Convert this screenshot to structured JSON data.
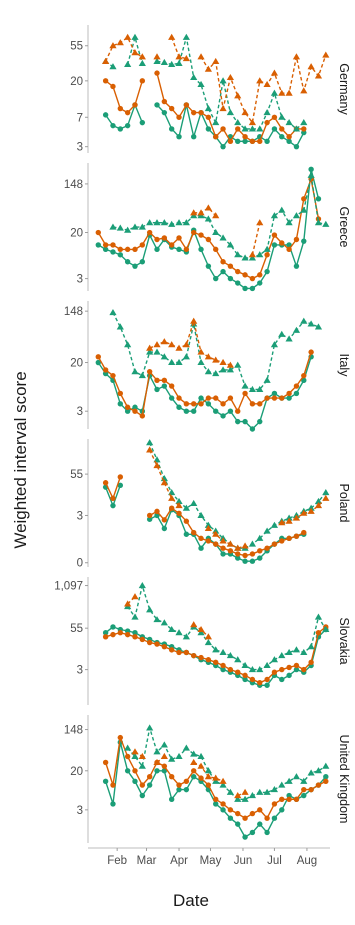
{
  "chart_data": {
    "type": "line",
    "xlabel": "Date",
    "ylabel": "Weighted interval score",
    "x_ticks": [
      "Feb",
      "Mar",
      "Apr",
      "May",
      "Jun",
      "Jul",
      "Aug"
    ],
    "x_dates": [
      "01-14",
      "01-21",
      "01-28",
      "02-04",
      "02-11",
      "02-18",
      "02-25",
      "03-04",
      "03-11",
      "03-18",
      "03-25",
      "04-01",
      "04-08",
      "04-15",
      "04-22",
      "04-29",
      "05-06",
      "05-13",
      "05-20",
      "05-27",
      "06-03",
      "06-10",
      "06-17",
      "06-24",
      "07-01",
      "07-08",
      "07-15",
      "07-22",
      "07-29",
      "08-05",
      "08-12",
      "08-19"
    ],
    "series_colors": [
      "#1b9e77",
      "#d95f02"
    ],
    "series_styles": [
      "solid",
      "dashed"
    ],
    "panels": [
      {
        "label": "Germany",
        "y_ticks": [
          "55",
          "20",
          "7",
          "3"
        ],
        "y_tick_values": [
          55,
          20,
          7,
          3
        ],
        "ylim": [
          2.5,
          100
        ],
        "series": [
          {
            "values": [
              null,
              7.5,
              5.5,
              5,
              5.5,
              10,
              6,
              null,
              10,
              8,
              5,
              4,
              10,
              4,
              8,
              5,
              4,
              3,
              4,
              3.5,
              3.5,
              3.5,
              4,
              3.5,
              5,
              4,
              3.5,
              3,
              4.5,
              null,
              null,
              null
            ]
          },
          {
            "values": [
              null,
              20,
              17,
              9,
              8,
              10,
              20,
              null,
              25,
              11,
              9,
              7,
              10,
              8,
              8,
              7,
              4,
              5,
              3.5,
              5,
              4,
              3.5,
              3.5,
              6,
              7,
              5,
              4,
              5,
              5,
              null,
              null,
              null
            ]
          },
          {
            "values": [
              null,
              35,
              30,
              null,
              32,
              70,
              33,
              null,
              35,
              34,
              32,
              33,
              70,
              22,
              18,
              9,
              6,
              20,
              8,
              6,
              5,
              5,
              5,
              8,
              14,
              7,
              6,
              5,
              6,
              null,
              null,
              null
            ]
          },
          {
            "values": [
              null,
              35,
              55,
              60,
              70,
              45,
              40,
              null,
              40,
              null,
              70,
              40,
              38,
              null,
              40,
              28,
              35,
              9,
              22,
              13,
              8,
              6,
              20,
              18,
              25,
              14,
              14,
              40,
              15,
              30,
              23,
              42
            ]
          }
        ]
      },
      {
        "label": "Greece",
        "y_ticks": [
          "148",
          "20",
          "3"
        ],
        "y_tick_values": [
          148,
          20,
          3
        ],
        "ylim": [
          1.8,
          350
        ],
        "series": [
          {
            "values": [
              12,
              10,
              9,
              8,
              6,
              5,
              6,
              18,
              10,
              15,
              11,
              10,
              9,
              22,
              10,
              5,
              3,
              4,
              3,
              2.5,
              2,
              2,
              2.5,
              4,
              12,
              12,
              12,
              5,
              14,
              270,
              80,
              null
            ]
          },
          {
            "values": [
              20,
              12,
              12,
              10,
              10,
              10,
              12,
              20,
              15,
              16,
              12,
              16,
              10,
              20,
              18,
              15,
              10,
              6,
              5,
              4,
              3.5,
              3,
              3.5,
              8,
              18,
              13,
              10,
              15,
              80,
              180,
              35,
              null
            ]
          },
          {
            "values": [
              null,
              null,
              25,
              24,
              22,
              25,
              25,
              30,
              30,
              30,
              28,
              30,
              30,
              40,
              40,
              35,
              20,
              16,
              12,
              8,
              7,
              7,
              8,
              10,
              40,
              50,
              30,
              40,
              50,
              210,
              30,
              28
            ]
          },
          {
            "values": [
              null,
              null,
              null,
              null,
              null,
              null,
              null,
              null,
              null,
              null,
              null,
              null,
              null,
              45,
              45,
              55,
              40,
              null,
              null,
              null,
              null,
              8,
              30,
              null,
              null,
              null,
              null,
              null,
              null,
              null,
              null,
              null
            ]
          }
        ]
      },
      {
        "label": "Italy",
        "y_ticks": [
          "148",
          "20",
          "3"
        ],
        "y_tick_values": [
          148,
          20,
          3
        ],
        "ylim": [
          1.5,
          220
        ],
        "series": [
          {
            "values": [
              20,
              13,
              10,
              4,
              3,
              3.5,
              3,
              12,
              7,
              8,
              5,
              3.5,
              3,
              3,
              5,
              4,
              3,
              2.5,
              3,
              2,
              2,
              1.5,
              2,
              5,
              6,
              5,
              5,
              6,
              10,
              25,
              null,
              null
            ]
          },
          {
            "values": [
              25,
              15,
              12,
              6,
              3.5,
              3,
              2.5,
              14,
              10,
              10,
              8,
              5,
              4,
              4,
              4,
              5,
              5,
              4,
              5,
              3,
              6,
              4,
              4,
              5,
              5,
              5,
              6,
              8,
              12,
              30,
              null,
              null
            ]
          },
          {
            "values": [
              null,
              null,
              140,
              80,
              40,
              14,
              12,
              30,
              30,
              25,
              20,
              20,
              25,
              90,
              20,
              14,
              13,
              15,
              15,
              18,
              8,
              7,
              7,
              10,
              40,
              60,
              50,
              70,
              100,
              90,
              80,
              null
            ]
          },
          {
            "values": [
              null,
              null,
              null,
              null,
              null,
              null,
              null,
              35,
              40,
              45,
              40,
              35,
              40,
              100,
              30,
              25,
              22,
              20,
              18,
              null,
              null,
              null,
              null,
              null,
              null,
              null,
              null,
              null,
              null,
              null,
              null,
              null
            ]
          }
        ]
      },
      {
        "label": "Poland",
        "y_ticks": [
          "55",
          "3",
          "0"
        ],
        "y_tick_values": [
          55,
          3,
          0
        ],
        "ylim": [
          0.08,
          650
        ],
        "series": [
          {
            "values": [
              null,
              22,
              6,
              25,
              null,
              null,
              null,
              2.3,
              3,
              1.2,
              4.5,
              3,
              0.8,
              0.8,
              0.3,
              0.6,
              0.4,
              0.2,
              0.2,
              0.15,
              0.12,
              0.12,
              0.15,
              0.25,
              0.4,
              0.6,
              0.6,
              0.7,
              0.8,
              null,
              null,
              null
            ]
          },
          {
            "values": [
              null,
              30,
              10,
              45,
              null,
              null,
              null,
              3,
              4,
              2.2,
              5,
              3.5,
              2,
              0.9,
              0.6,
              0.5,
              0.4,
              0.3,
              0.25,
              0.2,
              0.18,
              0.2,
              0.25,
              0.3,
              0.4,
              0.5,
              0.6,
              0.7,
              0.9,
              null,
              null,
              null
            ]
          },
          {
            "values": [
              null,
              null,
              null,
              null,
              null,
              null,
              null,
              500,
              150,
              40,
              15,
              8,
              5,
              7,
              3,
              1.5,
              1,
              0.6,
              0.4,
              0.3,
              0.3,
              0.4,
              0.6,
              1,
              1.5,
              2,
              2.5,
              3,
              4,
              5,
              8,
              15
            ]
          },
          {
            "values": [
              null,
              null,
              null,
              null,
              null,
              null,
              null,
              300,
              100,
              30,
              10,
              6,
              null,
              null,
              null,
              1.2,
              0.8,
              0.5,
              0.4,
              0.3,
              0.35,
              null,
              null,
              null,
              null,
              1.8,
              2,
              2.5,
              3.5,
              4,
              6,
              10
            ]
          }
        ]
      },
      {
        "label": "Slovakia",
        "y_ticks": [
          "1,097",
          "55",
          "3"
        ],
        "y_tick_values": [
          1097,
          55,
          3
        ],
        "ylim": [
          0.25,
          2000
        ],
        "series": [
          {
            "values": [
              null,
              40,
              60,
              50,
              45,
              40,
              30,
              25,
              20,
              18,
              15,
              12,
              10,
              8,
              6,
              5,
              4,
              3,
              2.5,
              2,
              1.5,
              1.2,
              1,
              1,
              2,
              1.5,
              2,
              3,
              2.5,
              4,
              30,
              50
            ]
          },
          {
            "values": [
              null,
              30,
              35,
              40,
              35,
              30,
              25,
              20,
              18,
              15,
              12,
              10,
              10,
              8,
              7,
              6,
              5,
              4,
              3,
              2.5,
              2,
              1.5,
              1.2,
              1.5,
              2.5,
              3,
              3.5,
              4,
              3,
              5,
              40,
              60
            ]
          },
          {
            "values": [
              null,
              null,
              null,
              null,
              250,
              120,
              1097,
              200,
              100,
              80,
              50,
              40,
              30,
              60,
              40,
              20,
              12,
              10,
              8,
              6,
              4,
              3,
              3,
              4,
              6,
              8,
              10,
              12,
              10,
              15,
              120,
              50
            ]
          },
          {
            "values": [
              null,
              null,
              null,
              null,
              300,
              500,
              null,
              null,
              null,
              null,
              null,
              null,
              null,
              70,
              50,
              30,
              null,
              null,
              null,
              null,
              null,
              null,
              null,
              null,
              null,
              null,
              null,
              null,
              null,
              null,
              null,
              null
            ]
          }
        ]
      },
      {
        "label": "United Kingdom",
        "y_ticks": [
          "148",
          "20",
          "3"
        ],
        "y_tick_values": [
          148,
          20,
          3
        ],
        "ylim": [
          0.6,
          300
        ],
        "series": [
          {
            "values": [
              null,
              12,
              4,
              80,
              20,
              12,
              6,
              10,
              20,
              20,
              5,
              8,
              8,
              15,
              12,
              8,
              4,
              3,
              2,
              1.5,
              0.8,
              1,
              1.5,
              1,
              2,
              3,
              6,
              5,
              6,
              8,
              10,
              15
            ]
          },
          {
            "values": [
              null,
              30,
              10,
              100,
              40,
              20,
              10,
              15,
              30,
              25,
              15,
              10,
              12,
              20,
              14,
              10,
              5,
              4,
              3,
              2.5,
              2,
              2.5,
              3,
              2,
              4,
              5,
              5,
              5,
              8,
              8,
              10,
              12
            ]
          },
          {
            "values": [
              null,
              null,
              null,
              null,
              60,
              40,
              25,
              160,
              50,
              70,
              35,
              40,
              60,
              45,
              40,
              20,
              12,
              10,
              7,
              5,
              5,
              6,
              7,
              7,
              8,
              10,
              12,
              15,
              12,
              18,
              20,
              25
            ]
          },
          {
            "values": [
              null,
              null,
              null,
              null,
              null,
              50,
              40,
              null,
              30,
              40,
              null,
              null,
              null,
              30,
              25,
              15,
              14,
              12,
              null,
              6,
              7,
              null,
              null,
              null,
              null,
              null,
              null,
              null,
              null,
              null,
              null,
              null
            ]
          }
        ]
      }
    ]
  }
}
